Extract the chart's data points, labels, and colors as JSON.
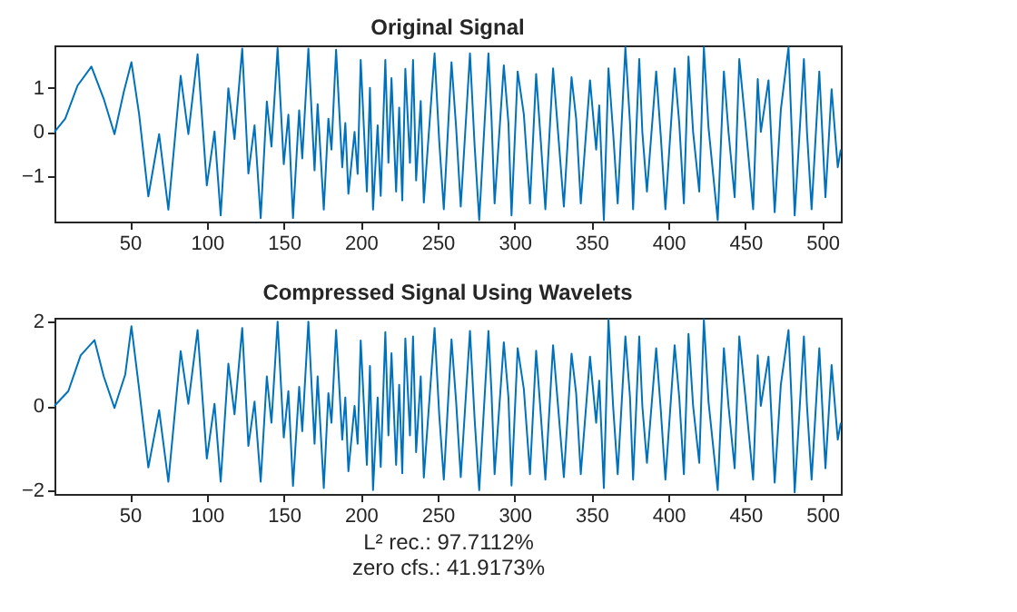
{
  "chart_data": [
    {
      "type": "line",
      "title": "Original Signal",
      "xlim": [
        1,
        512
      ],
      "ylim": [
        -2.03,
        1.96
      ],
      "xticks": [
        50,
        100,
        150,
        200,
        250,
        300,
        350,
        400,
        450,
        500
      ],
      "yticks": [
        -1,
        0,
        1
      ],
      "grid": false,
      "x": [
        1,
        8,
        16,
        25,
        33,
        40,
        46,
        51,
        56,
        62,
        69,
        75,
        83,
        88,
        94,
        100,
        105,
        109,
        114,
        118,
        123,
        127,
        131,
        135,
        139,
        142,
        146,
        150,
        153,
        156,
        160,
        162,
        166,
        170,
        172,
        176,
        179,
        181,
        184,
        188,
        190,
        192,
        196,
        198,
        200,
        204,
        206,
        208,
        211,
        213,
        216,
        218,
        220,
        223,
        225,
        227,
        229,
        232,
        234,
        236,
        239,
        241,
        248,
        251,
        254,
        259,
        262,
        265,
        271,
        274,
        277,
        283,
        285,
        287,
        293,
        296,
        298,
        302,
        306,
        310,
        314,
        317,
        320,
        325,
        328,
        332,
        337,
        340,
        343,
        349,
        353,
        355,
        358,
        361,
        364,
        367,
        372,
        375,
        377,
        381,
        383,
        386,
        392,
        395,
        398,
        404,
        407,
        410,
        413,
        416,
        420,
        423,
        426,
        432,
        436,
        439,
        443,
        446,
        450,
        455,
        458,
        460,
        465,
        469,
        473,
        478,
        480,
        482,
        488,
        490,
        493,
        498,
        502,
        506,
        510,
        512
      ],
      "series": [
        {
          "color": "#0072bd",
          "values": [
            0,
            0.3,
            1.05,
            1.48,
            0.75,
            -0.05,
            0.9,
            1.58,
            0.4,
            -1.46,
            -0.05,
            -1.76,
            1.27,
            -0.05,
            1.76,
            -1.21,
            0.01,
            -1.89,
            0.99,
            -0.16,
            1.89,
            -0.94,
            0.15,
            -1.95,
            0.69,
            -0.33,
            1.9,
            -0.73,
            0.39,
            -1.95,
            0.49,
            -0.6,
            1.89,
            -0.87,
            0.63,
            -1.76,
            0.3,
            -0.4,
            1.86,
            -0.8,
            0.2,
            -1.4,
            0.0,
            -0.95,
            1.63,
            -1.35,
            1.0,
            -1.76,
            0.15,
            -1.45,
            1.63,
            -0.7,
            1.22,
            -1.35,
            0.55,
            -1.55,
            1.43,
            -0.7,
            1.63,
            -1.1,
            0.7,
            -1.6,
            1.78,
            -0.2,
            -1.75,
            1.58,
            0.1,
            -1.69,
            1.78,
            -0.3,
            -2.0,
            1.78,
            0.3,
            -1.62,
            1.51,
            0.2,
            -1.89,
            1.37,
            0.4,
            -1.62,
            1.31,
            -0.2,
            -1.75,
            1.44,
            0.1,
            -1.69,
            1.24,
            0.3,
            -1.62,
            1.17,
            -0.4,
            0.6,
            -2.0,
            1.44,
            0.0,
            -1.62,
            1.92,
            0.2,
            -1.75,
            1.65,
            0.0,
            -1.35,
            1.37,
            -0.1,
            -1.75,
            1.44,
            0.2,
            -1.62,
            1.71,
            0.0,
            -1.35,
            1.92,
            0.1,
            -2.0,
            1.37,
            0.0,
            -1.48,
            1.65,
            0.2,
            -1.75,
            1.2,
            0.0,
            1.17,
            -1.82,
            0.5,
            1.92,
            0.1,
            -1.89,
            1.65,
            0.0,
            -1.75,
            1.37,
            -1.48,
            0.97,
            -0.8,
            -0.4
          ]
        }
      ]
    },
    {
      "type": "line",
      "title": "Compressed Signal Using Wavelets",
      "xlim": [
        1,
        512
      ],
      "ylim": [
        -2.09,
        2.09
      ],
      "xticks": [
        50,
        100,
        150,
        200,
        250,
        300,
        350,
        400,
        450,
        500
      ],
      "yticks": [
        -2,
        0,
        2
      ],
      "grid": false,
      "annotations": [
        "L² rec.:  97.7112%",
        "zero  cfs.:  41.9173%"
      ],
      "x": [
        1,
        10,
        18,
        27,
        33,
        40,
        47,
        51,
        56,
        62,
        69,
        75,
        83,
        88,
        94,
        100,
        105,
        109,
        114,
        118,
        123,
        127,
        131,
        135,
        139,
        142,
        146,
        150,
        153,
        156,
        160,
        162,
        166,
        170,
        172,
        176,
        179,
        181,
        184,
        188,
        190,
        192,
        196,
        198,
        200,
        204,
        206,
        208,
        211,
        213,
        216,
        218,
        220,
        223,
        225,
        227,
        229,
        232,
        234,
        236,
        239,
        241,
        248,
        251,
        254,
        259,
        262,
        265,
        271,
        274,
        277,
        283,
        285,
        287,
        293,
        296,
        298,
        302,
        306,
        310,
        314,
        317,
        320,
        325,
        328,
        332,
        337,
        340,
        343,
        349,
        353,
        355,
        358,
        361,
        364,
        367,
        372,
        375,
        377,
        381,
        383,
        386,
        392,
        395,
        398,
        404,
        407,
        410,
        413,
        416,
        420,
        423,
        426,
        432,
        436,
        439,
        443,
        446,
        450,
        455,
        458,
        460,
        465,
        469,
        473,
        478,
        480,
        482,
        488,
        490,
        493,
        498,
        502,
        506,
        510,
        512
      ],
      "series": [
        {
          "color": "#0072bd",
          "values": [
            0,
            0.35,
            1.2,
            1.56,
            0.7,
            -0.05,
            0.75,
            1.89,
            0.4,
            -1.46,
            -0.1,
            -1.8,
            1.3,
            0.05,
            1.8,
            -1.25,
            0.05,
            -1.8,
            1.0,
            -0.2,
            1.85,
            -0.95,
            0.1,
            -1.8,
            0.7,
            -0.4,
            2.0,
            -0.75,
            0.35,
            -1.9,
            0.45,
            -0.6,
            2.0,
            -0.9,
            0.7,
            -1.95,
            0.3,
            -0.4,
            1.8,
            -0.8,
            0.2,
            -1.55,
            0.0,
            -0.9,
            1.55,
            -1.4,
            0.95,
            -2.0,
            0.2,
            -1.45,
            1.75,
            -0.7,
            1.25,
            -1.4,
            0.5,
            -1.6,
            1.6,
            -0.7,
            1.65,
            -1.1,
            0.7,
            -1.7,
            1.85,
            -0.2,
            -1.75,
            1.58,
            0.1,
            -1.69,
            1.78,
            -0.3,
            -2.0,
            1.78,
            0.3,
            -1.62,
            1.51,
            0.2,
            -1.89,
            1.37,
            0.4,
            -1.62,
            1.31,
            -0.2,
            -1.75,
            1.44,
            0.1,
            -1.69,
            1.24,
            0.3,
            -1.62,
            1.17,
            -0.4,
            0.6,
            -1.95,
            2.05,
            0.0,
            -1.62,
            1.65,
            0.2,
            -1.75,
            1.65,
            0.0,
            -1.35,
            1.37,
            -0.1,
            -1.75,
            1.44,
            0.2,
            -1.62,
            1.71,
            0.0,
            -1.35,
            2.05,
            0.1,
            -2.0,
            1.37,
            0.0,
            -1.48,
            1.65,
            0.2,
            -1.75,
            1.2,
            0.0,
            1.17,
            -1.82,
            0.5,
            1.8,
            0.1,
            -2.05,
            1.65,
            0.0,
            -1.75,
            1.37,
            -1.48,
            0.97,
            -0.8,
            -0.4
          ]
        }
      ]
    }
  ]
}
